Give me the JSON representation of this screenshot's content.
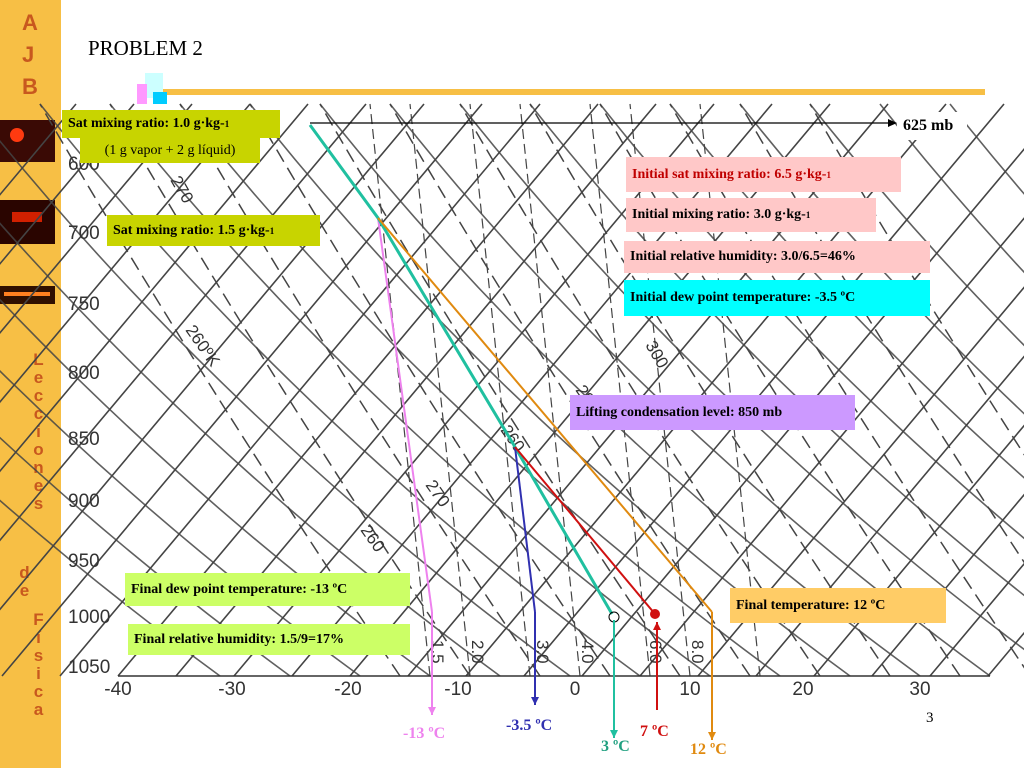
{
  "sidebar": {
    "initials": [
      "A",
      "J",
      "B"
    ],
    "words": [
      "Lecciones",
      "de",
      "Física"
    ]
  },
  "title": "PROBLEM 2",
  "page_number": "3",
  "diagram": {
    "pressure_labels": [
      "600",
      "700",
      "750",
      "800",
      "850",
      "900",
      "950",
      "1000",
      "1050"
    ],
    "temperature_labels": [
      "-40",
      "-30",
      "-20",
      "-10",
      "0",
      "10",
      "20",
      "30"
    ],
    "curve_labels": [
      "270",
      "260ºK",
      "300",
      "280",
      "260",
      "270",
      "260",
      "1.5",
      "2.0",
      "3.0",
      "4.0",
      "6.0",
      "8.0"
    ]
  },
  "annotations": {
    "level": "625 mb",
    "sat_top": {
      "text": "Sat mixing ratio: 1.0 g·kg-",
      "sup": "1"
    },
    "sat_top_note": "(1 g vapor + 2 g líquid)",
    "sat_mid": {
      "text": "Sat mixing ratio: 1.5 g·kg-",
      "sup": "1"
    },
    "initial_sat": {
      "text": "Initial sat mixing ratio: 6.5 g·kg-",
      "sup": "1"
    },
    "initial_mix": {
      "text": "Initial mixing ratio: 3.0 g·kg-",
      "sup": "1"
    },
    "initial_rh": "Initial relative humidity: 3.0/6.5=46%",
    "initial_dew": "Initial dew point temperature: -3.5 ºC",
    "lcl": "Lifting condensation level: 850 mb",
    "final_dew": "Final dew point temperature: -13 ºC",
    "final_rh": "Final relative humidity: 1.5/9=17%",
    "final_temp": "Final temperature: 12 ºC"
  },
  "bottom_labels": [
    "-13 ºC",
    "-3.5 ºC",
    "3 ºC",
    "7 ºC",
    "12 ºC"
  ]
}
